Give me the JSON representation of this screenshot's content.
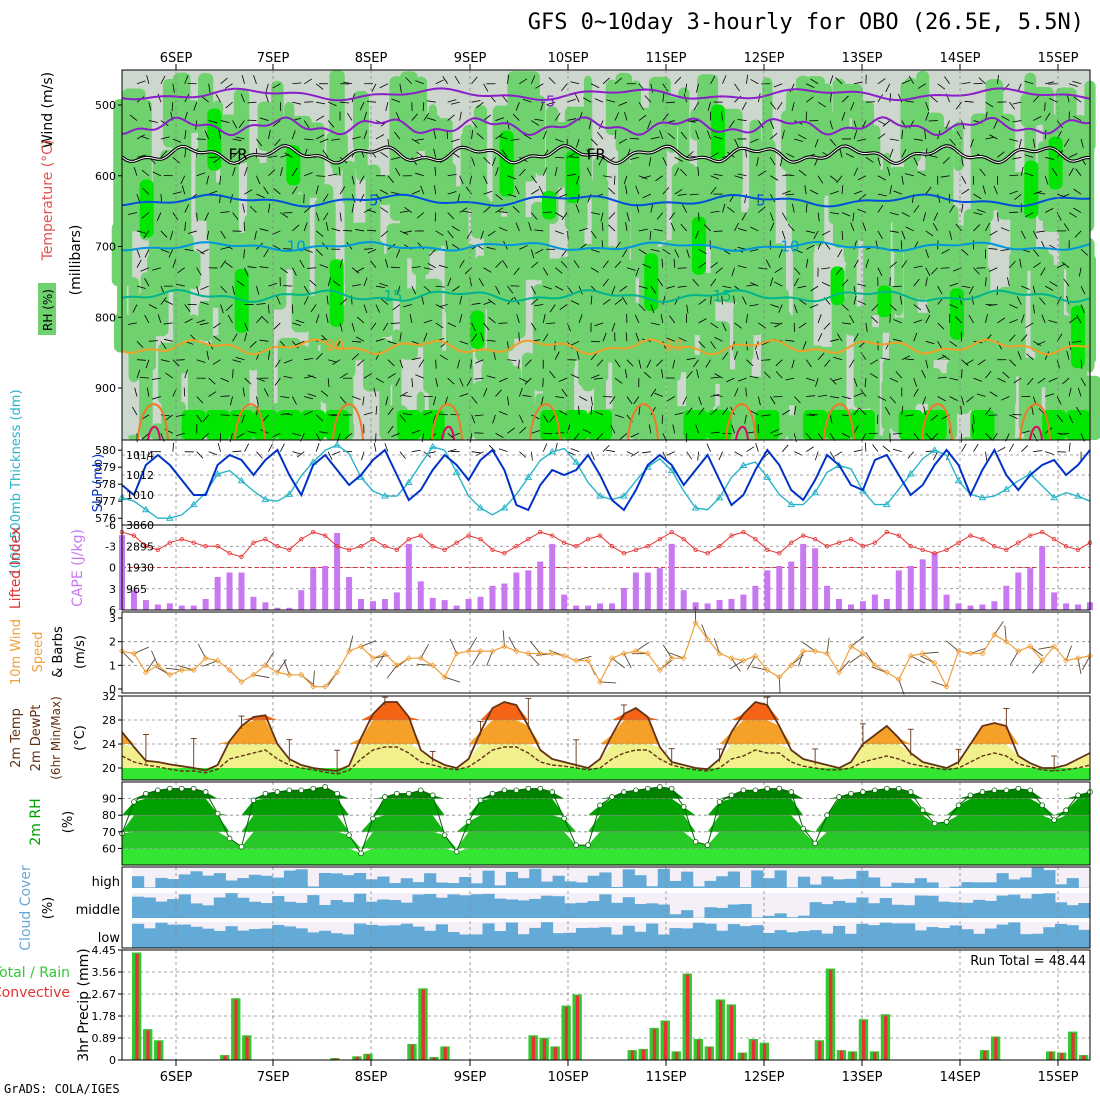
{
  "title": "GFS 0~10day 3-hourly for OBO (26.5E, 5.5N)",
  "credit": "GrADS: COLA/IGES",
  "colors": {
    "rh_light": "#cdd7cd",
    "rh_mid": "#6fd26f",
    "rh_high": "#00e600",
    "wind_barb": "#000000",
    "freezing": "#000000",
    "t_minus5": "#8a1ec8",
    "t_5": "#0050dc",
    "t_10": "#0096dc",
    "t_15": "#00b48c",
    "t_20": "#f0a028",
    "t_25": "#f07828",
    "t_30": "#e6006e",
    "thickness": "#28b4c8",
    "slp": "#0032c8",
    "lifted": "#e63232",
    "cape": "#c878f0",
    "wind_speed": "#f0a03c",
    "temp_fill_low": "#f0f08c",
    "temp_fill_mid": "#f5a028",
    "temp_fill_high": "#f56414",
    "rh_fill": "#00a000",
    "cloud": "#64aad7",
    "precip_total": "#32c832",
    "precip_conv": "#e63232"
  },
  "chart_data": [
    {
      "type": "contour",
      "panel": "upper_air",
      "ylabel_parts": [
        "Wind (m/s)",
        "Temperature (°C)",
        "RH (%)",
        "(millibars)"
      ],
      "yticks": [
        500,
        600,
        700,
        800,
        900
      ],
      "ylim": [
        1000,
        450
      ],
      "xticks": [
        "6SEP",
        "7SEP",
        "8SEP",
        "9SEP",
        "10SEP",
        "11SEP",
        "12SEP",
        "13SEP",
        "14SEP",
        "15SEP"
      ],
      "contours": [
        {
          "label": "-5",
          "labels_at": [
            0.44
          ],
          "level_mb": 495
        },
        {
          "label": "FR",
          "labels_at": [
            0.12,
            0.49
          ],
          "level_mb": 570
        },
        {
          "label": "5",
          "labels_at": [
            0.26,
            0.66
          ],
          "level_mb": 635
        },
        {
          "label": "10",
          "labels_at": [
            0.18,
            0.69
          ],
          "level_mb": 700
        },
        {
          "label": "15",
          "labels_at": [
            0.28,
            0.62
          ],
          "level_mb": 770
        },
        {
          "label": "20",
          "labels_at": [
            0.22,
            0.57
          ],
          "level_mb": 840
        }
      ]
    },
    {
      "type": "line",
      "panel": "thickness_slp",
      "left_label": "1000-500mb Thickness (dm)",
      "right_label": "SLP (mb)",
      "left_ticks": [
        "576",
        "577",
        "578",
        "579",
        "580"
      ],
      "right_ticks": [
        "1010",
        "1012",
        "1014"
      ],
      "ylim_left": [
        575.6,
        580.6
      ],
      "ylim_right": [
        1007,
        1015.5
      ],
      "series": [
        {
          "name": "1000-500mb Thickness",
          "values": [
            577.2,
            577.0,
            576.5,
            576.0,
            576.0,
            576.2,
            576.8,
            577.5,
            578.6,
            578.8,
            578.2,
            577.6,
            577.1,
            577.0,
            577.4,
            578.5,
            579.3,
            580.0,
            580.3,
            579.8,
            578.4,
            577.6,
            577.3,
            577.3,
            578.1,
            579.2,
            580.2,
            580.0,
            578.7,
            577.3,
            576.6,
            576.2,
            576.6,
            577.4,
            578.4,
            579.4,
            579.9,
            580.1,
            579.3,
            578.1,
            577.3,
            577.1,
            577.3,
            578.2,
            579.0,
            579.5,
            578.8,
            577.6,
            576.6,
            576.5,
            577.2,
            578.4,
            579.1,
            579.3,
            578.4,
            577.4,
            576.8,
            576.8,
            577.5,
            578.7,
            579.1,
            578.9,
            577.6,
            576.8,
            576.8,
            577.7,
            578.6,
            579.5,
            580.0,
            579.7,
            578.2,
            577.4,
            577.2,
            577.3,
            577.7,
            578.2,
            578.6,
            577.9,
            577.2,
            577.5,
            577.3,
            577.0
          ]
        },
        {
          "name": "SLP",
          "values": [
            1011.0,
            1010.0,
            1013.0,
            1014.0,
            1013.0,
            1011.5,
            1010.0,
            1010.0,
            1013.0,
            1014.0,
            1013.5,
            1012.0,
            1013.5,
            1014.5,
            1012.0,
            1010.0,
            1013.0,
            1014.0,
            1012.5,
            1011.0,
            1012.0,
            1013.5,
            1014.5,
            1012.0,
            1009.5,
            1010.5,
            1012.5,
            1014.0,
            1013.0,
            1011.5,
            1013.5,
            1014.5,
            1012.5,
            1009.0,
            1008.5,
            1011.0,
            1012.5,
            1012.0,
            1012.5,
            1014.0,
            1012.0,
            1009.5,
            1008.5,
            1010.5,
            1013.0,
            1014.0,
            1013.0,
            1011.0,
            1012.5,
            1014.0,
            1011.5,
            1009.0,
            1010.0,
            1012.5,
            1014.5,
            1013.0,
            1010.5,
            1009.5,
            1011.5,
            1014.0,
            1013.0,
            1011.0,
            1010.5,
            1013.5,
            1014.0,
            1012.0,
            1010.0,
            1011.0,
            1013.0,
            1014.5,
            1013.0,
            1010.0,
            1012.5,
            1014.5,
            1012.0,
            1010.5,
            1012.0,
            1013.0,
            1013.5,
            1012.0,
            1013.0,
            1014.5
          ]
        }
      ]
    },
    {
      "type": "bar+line",
      "panel": "cape_li",
      "left_label": "Lifted Index",
      "right_label": "CAPE (J/kg)",
      "left_ticks": [
        "-3",
        "0",
        "3",
        "6"
      ],
      "left_top_tick": "-6",
      "right_ticks": [
        "965",
        "1930",
        "2895",
        "3860"
      ],
      "series": [
        {
          "name": "Lifted Index",
          "values": [
            -5.0,
            -4.5,
            -3.0,
            -2.5,
            -3.5,
            -4.0,
            -3.5,
            -3.0,
            -3.0,
            -2.0,
            -1.5,
            -3.5,
            -4.0,
            -3.0,
            -2.5,
            -4.0,
            -5.0,
            -4.5,
            -3.0,
            -2.5,
            -3.0,
            -4.0,
            -3.0,
            -2.5,
            -4.0,
            -4.5,
            -3.0,
            -2.5,
            -3.5,
            -4.5,
            -4.0,
            -2.5,
            -2.0,
            -3.0,
            -4.0,
            -5.0,
            -4.5,
            -3.5,
            -3.0,
            -4.0,
            -4.5,
            -3.0,
            -2.0,
            -2.5,
            -3.0,
            -4.0,
            -5.0,
            -4.0,
            -2.5,
            -2.0,
            -3.0,
            -4.5,
            -5.0,
            -4.0,
            -2.5,
            -2.0,
            -3.5,
            -4.5,
            -4.0,
            -3.0,
            -3.5,
            -4.0,
            -3.0,
            -3.5,
            -5.0,
            -4.5,
            -3.0,
            -2.5,
            -2.0,
            -2.5,
            -3.5,
            -4.5,
            -4.0,
            -3.0,
            -2.5,
            -3.5,
            -4.5,
            -5.0,
            -4.0,
            -3.0,
            -2.5,
            -3.5
          ]
        },
        {
          "name": "CAPE",
          "values": [
            3400,
            900,
            450,
            250,
            300,
            200,
            200,
            500,
            1500,
            1700,
            1700,
            600,
            350,
            100,
            100,
            900,
            1900,
            2000,
            3500,
            1500,
            500,
            400,
            500,
            800,
            3000,
            1300,
            550,
            450,
            200,
            500,
            600,
            1100,
            1200,
            1700,
            1800,
            2200,
            3000,
            700,
            200,
            200,
            300,
            300,
            1000,
            1700,
            1700,
            1900,
            3000,
            900,
            350,
            300,
            450,
            500,
            700,
            1100,
            1800,
            2000,
            2200,
            3000,
            2800,
            1100,
            500,
            250,
            400,
            700,
            500,
            1800,
            2000,
            2300,
            2600,
            700,
            300,
            200,
            250,
            400,
            1100,
            1700,
            1900,
            2900,
            800,
            300,
            250,
            350
          ]
        }
      ]
    },
    {
      "type": "line",
      "panel": "wind10m",
      "left_label": "10m Wind Speed & Barbs",
      "unit": "(m/s)",
      "yticks": [
        "0",
        "1",
        "2",
        "3"
      ],
      "ylim": [
        0,
        3
      ],
      "series": [
        {
          "name": "10m Wind Speed",
          "values": [
            1.6,
            1.5,
            0.7,
            1.0,
            0.6,
            0.8,
            0.8,
            1.3,
            1.2,
            0.8,
            0.3,
            0.6,
            1.0,
            0.7,
            0.6,
            0.6,
            0.1,
            0.1,
            0.7,
            1.6,
            1.8,
            1.3,
            1.5,
            1.0,
            1.3,
            1.3,
            1.0,
            0.5,
            1.5,
            1.6,
            1.6,
            1.6,
            1.8,
            1.6,
            1.5,
            1.5,
            1.5,
            1.4,
            1.2,
            1.2,
            0.3,
            1.3,
            1.5,
            1.6,
            1.5,
            0.8,
            1.3,
            1.3,
            2.8,
            2.1,
            1.5,
            1.3,
            1.2,
            1.4,
            0.8,
            0.5,
            1.0,
            1.6,
            1.6,
            1.5,
            0.7,
            1.8,
            1.5,
            1.0,
            0.7,
            0.4,
            1.4,
            1.5,
            1.1,
            0.1,
            1.6,
            1.5,
            1.5,
            2.3,
            2.0,
            1.6,
            1.8,
            1.2,
            1.8,
            1.2,
            1.3,
            1.4
          ]
        }
      ]
    },
    {
      "type": "area",
      "panel": "temp2m",
      "left_label": "2m Temp",
      "left_label2": "2m DewPt",
      "left_label3": "(6hr Min/Max)",
      "unit": "(°C)",
      "yticks": [
        "20",
        "24",
        "28",
        "32"
      ],
      "ylim": [
        18,
        32
      ],
      "series": [
        {
          "name": "2m Temp",
          "values": [
            26.0,
            23.5,
            21.2,
            21.0,
            20.6,
            20.3,
            20.0,
            19.6,
            20.5,
            24.5,
            27.0,
            28.5,
            28.8,
            24.0,
            21.5,
            20.5,
            20.0,
            19.7,
            19.5,
            20.4,
            25.0,
            29.0,
            31.0,
            31.0,
            28.5,
            23.0,
            21.5,
            20.5,
            20.0,
            21.5,
            26.0,
            30.0,
            31.0,
            30.5,
            27.0,
            23.0,
            21.5,
            21.0,
            20.5,
            20.0,
            21.5,
            25.5,
            29.0,
            30.0,
            28.5,
            23.5,
            21.0,
            20.5,
            20.0,
            19.8,
            21.5,
            26.0,
            29.0,
            31.0,
            30.5,
            27.0,
            23.0,
            21.5,
            21.0,
            20.5,
            20.0,
            21.0,
            24.0,
            25.5,
            27.0,
            25.0,
            22.5,
            21.0,
            20.5,
            20.0,
            21.0,
            24.0,
            27.0,
            27.5,
            27.0,
            22.0,
            20.8,
            20.0,
            20.0,
            20.5,
            21.5,
            22.5
          ]
        },
        {
          "name": "2m DewPt",
          "values": [
            22.0,
            21.0,
            20.5,
            20.2,
            19.8,
            19.5,
            19.5,
            19.2,
            19.8,
            21.5,
            22.0,
            22.5,
            23.0,
            21.5,
            20.5,
            20.0,
            19.7,
            19.3,
            19.0,
            19.6,
            21.5,
            23.0,
            23.5,
            23.5,
            22.5,
            21.0,
            20.5,
            20.0,
            19.7,
            20.2,
            21.5,
            23.0,
            23.5,
            23.5,
            22.5,
            21.0,
            20.5,
            20.3,
            20.0,
            19.7,
            20.0,
            21.5,
            22.5,
            23.0,
            23.0,
            21.5,
            20.5,
            20.0,
            19.7,
            19.5,
            20.0,
            21.5,
            22.0,
            23.0,
            22.5,
            22.5,
            21.0,
            20.3,
            20.0,
            19.7,
            19.7,
            20.0,
            21.0,
            21.5,
            22.0,
            21.5,
            20.7,
            20.3,
            20.0,
            19.7,
            20.0,
            21.0,
            22.0,
            22.5,
            22.0,
            20.7,
            20.2,
            19.7,
            19.5,
            19.7,
            20.0,
            20.5
          ]
        }
      ]
    },
    {
      "type": "area",
      "panel": "rh2m",
      "left_label": "2m RH",
      "unit": "(%)",
      "yticks": [
        "60",
        "70",
        "80",
        "90"
      ],
      "ylim": [
        50,
        100
      ],
      "series": [
        {
          "name": "2m RH",
          "values": [
            69,
            88,
            93,
            95,
            96,
            96,
            96,
            94,
            81,
            66,
            61,
            89,
            93,
            94,
            95,
            95,
            96,
            97,
            93,
            68,
            57,
            78,
            91,
            93,
            93,
            95,
            92,
            68,
            58,
            76,
            89,
            93,
            95,
            95,
            96,
            96,
            94,
            78,
            62,
            62,
            86,
            91,
            94,
            95,
            96,
            97,
            96,
            85,
            64,
            62,
            88,
            92,
            95,
            95,
            96,
            96,
            94,
            72,
            63,
            80,
            91,
            93,
            94,
            95,
            96,
            96,
            94,
            83,
            75,
            76,
            86,
            92,
            94,
            95,
            95,
            96,
            95,
            86,
            77,
            83,
            92,
            94
          ]
        }
      ]
    },
    {
      "type": "step",
      "panel": "cloud",
      "left_label": "Cloud Cover",
      "unit": "(%)",
      "ytick_labels": [
        "high",
        "middle",
        "low"
      ]
    },
    {
      "type": "bar",
      "panel": "precip",
      "left_label": "3hr Precip (mm)",
      "side_label_a": "Total / Rain",
      "side_label_b": "Convective",
      "run_total": "Run Total = 48.44",
      "yticks": [
        "0",
        "0.89",
        "1.78",
        "2.67",
        "3.56",
        "4.45"
      ],
      "ylim": [
        0,
        4.45
      ],
      "series": [
        {
          "name": "Total",
          "values": [
            4.35,
            1.25,
            0.8,
            0,
            0,
            0,
            0,
            0,
            0.2,
            2.5,
            1.0,
            0,
            0,
            0,
            0,
            0,
            0,
            0,
            0.08,
            0,
            0.15,
            0.25,
            0,
            0,
            0,
            0.65,
            2.9,
            0.12,
            0.55,
            0,
            0,
            0,
            0,
            0,
            0,
            0,
            1.0,
            0.9,
            0.55,
            2.2,
            2.65,
            0,
            0,
            0,
            0,
            0.4,
            0.45,
            1.3,
            1.6,
            0.35,
            3.5,
            0.85,
            0.55,
            2.45,
            2.25,
            0.3,
            0.85,
            0.7,
            0,
            0,
            0,
            0,
            0.8,
            3.7,
            0.4,
            0.35,
            1.65,
            0.35,
            1.85,
            0,
            0,
            0,
            0,
            0,
            0,
            0,
            0,
            0.4,
            0.95,
            0,
            0,
            0,
            0,
            0.35,
            0.3,
            1.15,
            0.2
          ]
        },
        {
          "name": "Convective",
          "values": [
            4.3,
            1.2,
            0.75,
            0,
            0,
            0,
            0,
            0,
            0.18,
            2.45,
            0.95,
            0,
            0,
            0,
            0,
            0,
            0,
            0,
            0.06,
            0,
            0.13,
            0.22,
            0,
            0,
            0,
            0.62,
            2.85,
            0.1,
            0.52,
            0,
            0,
            0,
            0,
            0,
            0,
            0,
            0.95,
            0.85,
            0.52,
            2.15,
            2.6,
            0,
            0,
            0,
            0,
            0.38,
            0.42,
            1.25,
            1.55,
            0.32,
            3.45,
            0.8,
            0.52,
            2.4,
            2.2,
            0.28,
            0.8,
            0.65,
            0,
            0,
            0,
            0,
            0.76,
            3.65,
            0.38,
            0.32,
            1.6,
            0.32,
            1.8,
            0,
            0,
            0,
            0,
            0,
            0,
            0,
            0,
            0.38,
            0.92,
            0,
            0,
            0,
            0,
            0.33,
            0.28,
            1.1,
            0.18
          ]
        }
      ]
    }
  ]
}
